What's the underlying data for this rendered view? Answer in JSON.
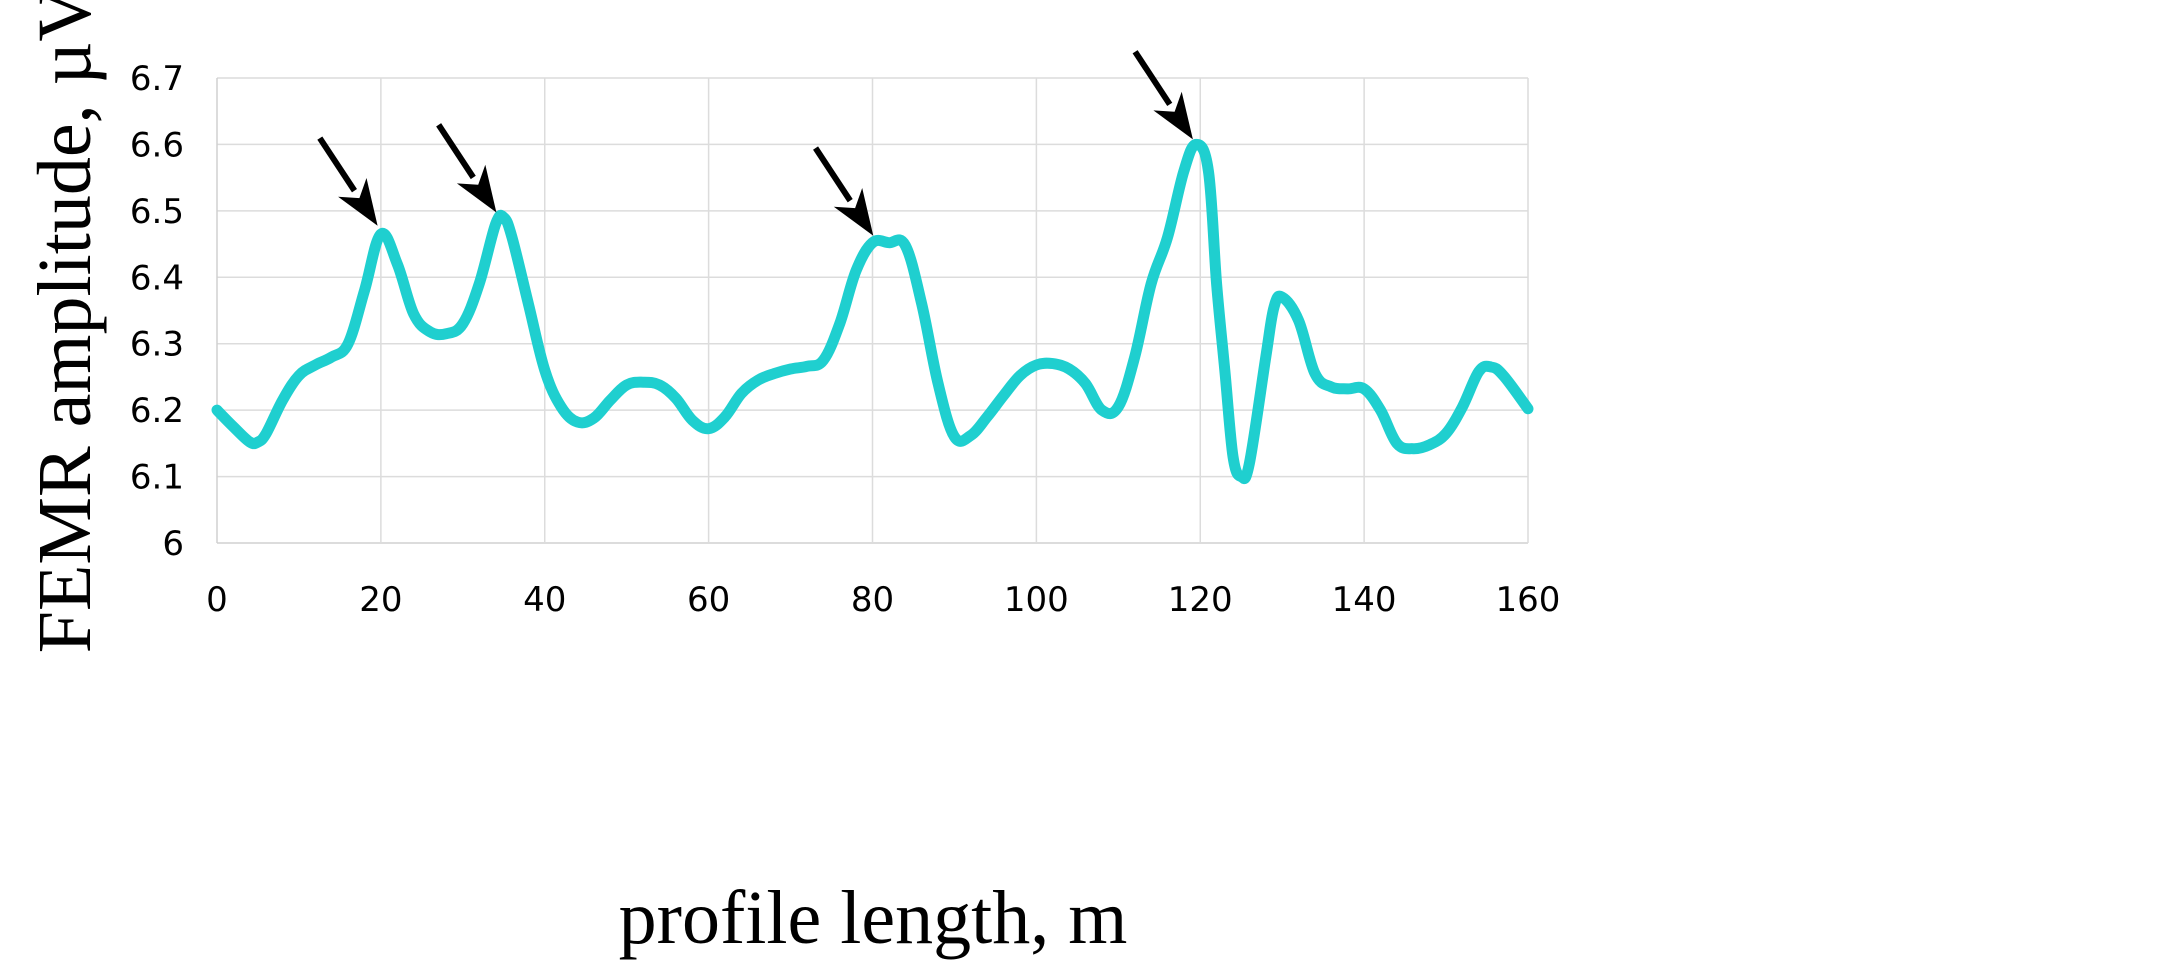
{
  "chart_data": {
    "type": "line",
    "title": "",
    "xlabel": "profile length, m",
    "ylabel": "FEMR amplitude, µV",
    "xlim": [
      0,
      160
    ],
    "ylim": [
      6,
      6.7
    ],
    "x_ticks": [
      "0",
      "20",
      "40",
      "60",
      "80",
      "100",
      "120",
      "140",
      "160"
    ],
    "y_ticks": [
      "6",
      "6.1",
      "6.2",
      "6.3",
      "6.4",
      "6.5",
      "6.6",
      "6.7"
    ],
    "grid": true,
    "legend": "none",
    "series": [
      {
        "color": "#1fcfcf",
        "points": [
          [
            0,
            6.2
          ],
          [
            2,
            6.175
          ],
          [
            4,
            6.152
          ],
          [
            5,
            6.152
          ],
          [
            6,
            6.165
          ],
          [
            8,
            6.215
          ],
          [
            10,
            6.252
          ],
          [
            12,
            6.268
          ],
          [
            14,
            6.28
          ],
          [
            16,
            6.3
          ],
          [
            18,
            6.38
          ],
          [
            20,
            6.465
          ],
          [
            22,
            6.42
          ],
          [
            24,
            6.345
          ],
          [
            26,
            6.318
          ],
          [
            28,
            6.315
          ],
          [
            30,
            6.33
          ],
          [
            32,
            6.39
          ],
          [
            34,
            6.48
          ],
          [
            35,
            6.49
          ],
          [
            36,
            6.46
          ],
          [
            38,
            6.36
          ],
          [
            40,
            6.26
          ],
          [
            42,
            6.205
          ],
          [
            44,
            6.182
          ],
          [
            46,
            6.188
          ],
          [
            48,
            6.215
          ],
          [
            50,
            6.238
          ],
          [
            52,
            6.242
          ],
          [
            54,
            6.238
          ],
          [
            56,
            6.218
          ],
          [
            58,
            6.185
          ],
          [
            60,
            6.172
          ],
          [
            62,
            6.19
          ],
          [
            64,
            6.225
          ],
          [
            66,
            6.245
          ],
          [
            68,
            6.255
          ],
          [
            70,
            6.262
          ],
          [
            72,
            6.266
          ],
          [
            74,
            6.275
          ],
          [
            76,
            6.33
          ],
          [
            78,
            6.41
          ],
          [
            80,
            6.452
          ],
          [
            82,
            6.452
          ],
          [
            84,
            6.448
          ],
          [
            86,
            6.36
          ],
          [
            88,
            6.24
          ],
          [
            90,
            6.16
          ],
          [
            92,
            6.162
          ],
          [
            94,
            6.19
          ],
          [
            96,
            6.222
          ],
          [
            98,
            6.252
          ],
          [
            100,
            6.268
          ],
          [
            102,
            6.27
          ],
          [
            104,
            6.262
          ],
          [
            106,
            6.24
          ],
          [
            108,
            6.2
          ],
          [
            110,
            6.205
          ],
          [
            112,
            6.28
          ],
          [
            114,
            6.39
          ],
          [
            116,
            6.46
          ],
          [
            118,
            6.56
          ],
          [
            119.5,
            6.6
          ],
          [
            121,
            6.56
          ],
          [
            122,
            6.39
          ],
          [
            123,
            6.26
          ],
          [
            124,
            6.13
          ],
          [
            125,
            6.1
          ],
          [
            126,
            6.12
          ],
          [
            128,
            6.28
          ],
          [
            129,
            6.355
          ],
          [
            130,
            6.37
          ],
          [
            132,
            6.335
          ],
          [
            134,
            6.255
          ],
          [
            136,
            6.235
          ],
          [
            138,
            6.232
          ],
          [
            140,
            6.232
          ],
          [
            142,
            6.2
          ],
          [
            144,
            6.15
          ],
          [
            146,
            6.142
          ],
          [
            148,
            6.148
          ],
          [
            150,
            6.165
          ],
          [
            152,
            6.205
          ],
          [
            154,
            6.258
          ],
          [
            155.5,
            6.265
          ],
          [
            157,
            6.252
          ],
          [
            160,
            6.202
          ]
        ]
      }
    ],
    "annotations": [
      {
        "type": "arrow",
        "target": [
          20,
          6.47
        ]
      },
      {
        "type": "arrow",
        "target": [
          34.5,
          6.49
        ]
      },
      {
        "type": "arrow",
        "target": [
          80.5,
          6.455
        ]
      },
      {
        "type": "arrow",
        "target": [
          119.5,
          6.6
        ]
      }
    ]
  }
}
